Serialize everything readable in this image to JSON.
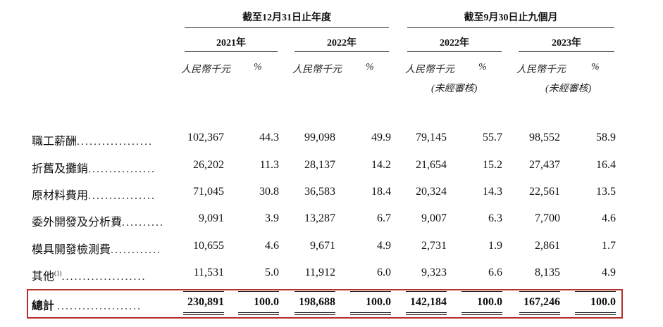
{
  "header": {
    "group1": "截至12月31日止年度",
    "group2": "截至9月30日止九個月",
    "years": [
      "2021年",
      "2022年",
      "2022年",
      "2023年"
    ],
    "unit_rmb": "人民幣千元",
    "unit_pct": "%",
    "unaudited": "(未經審核)"
  },
  "rows": [
    {
      "label": "職工薪酬",
      "dots": "..................",
      "sup": "",
      "values": [
        "102,367",
        "44.3",
        "99,098",
        "49.9",
        "79,145",
        "55.7",
        "98,552",
        "58.9"
      ]
    },
    {
      "label": "折舊及攤銷",
      "dots": "................",
      "sup": "",
      "values": [
        "26,202",
        "11.3",
        "28,137",
        "14.2",
        "21,654",
        "15.2",
        "27,437",
        "16.4"
      ]
    },
    {
      "label": "原材料費用",
      "dots": "................",
      "sup": "",
      "values": [
        "71,045",
        "30.8",
        "36,583",
        "18.4",
        "20,324",
        "14.3",
        "22,561",
        "13.5"
      ]
    },
    {
      "label": "委外開發及分析費",
      "dots": "..........",
      "sup": "",
      "values": [
        "9,091",
        "3.9",
        "13,287",
        "6.7",
        "9,007",
        "6.3",
        "7,700",
        "4.6"
      ]
    },
    {
      "label": "模具開發檢測費",
      "dots": "............",
      "sup": "",
      "values": [
        "10,655",
        "4.6",
        "9,671",
        "4.9",
        "2,731",
        "1.9",
        "2,861",
        "1.7"
      ]
    },
    {
      "label": "其他",
      "dots": "....................",
      "sup": "(1)",
      "values": [
        "11,531",
        "5.0",
        "11,912",
        "6.0",
        "9,323",
        "6.6",
        "8,135",
        "4.9"
      ]
    }
  ],
  "total": {
    "label": "總計",
    "dots": "....................",
    "values": [
      "230,891",
      "100.0",
      "198,688",
      "100.0",
      "142,184",
      "100.0",
      "167,246",
      "100.0"
    ]
  }
}
